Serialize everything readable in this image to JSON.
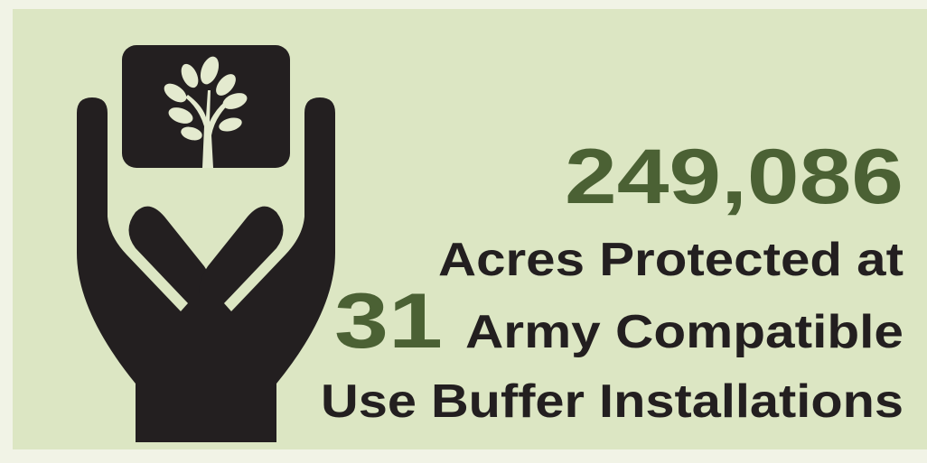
{
  "stats": {
    "acres": "249,086",
    "acres_caption": "Acres Protected at",
    "installations": "31",
    "installations_caption_1": "Army Compatible",
    "installations_caption_2": "Use Buffer Installations"
  }
}
